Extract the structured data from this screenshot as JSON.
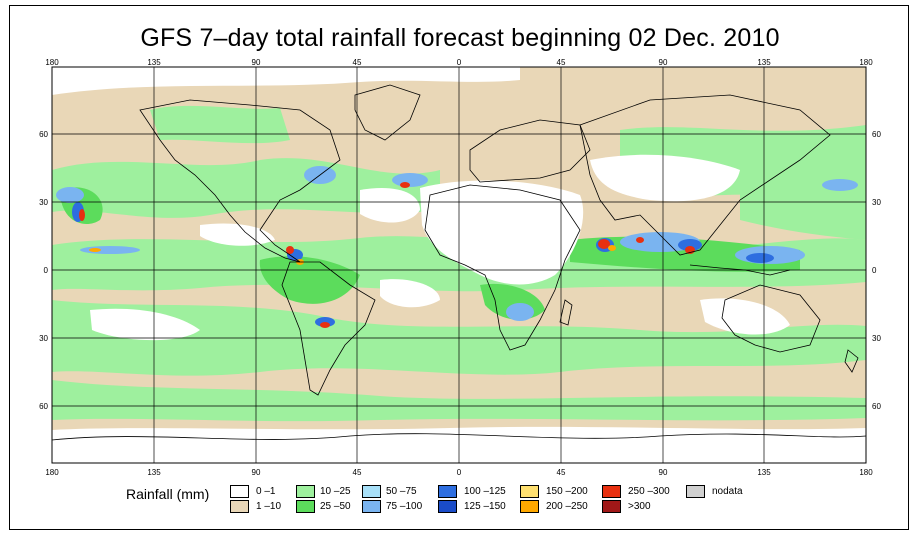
{
  "title": "GFS 7–day total rainfall forecast beginning 02 Dec. 2010",
  "map": {
    "lon_ticks": [
      "180",
      "135",
      "90",
      "45",
      "0",
      "45",
      "90",
      "135",
      "180"
    ],
    "lat_ticks_left": [
      "60",
      "30",
      "0",
      "30",
      "60"
    ],
    "lat_ticks_right": [
      "60",
      "30",
      "0",
      "30",
      "60"
    ]
  },
  "legend": {
    "title": "Rainfall (mm)",
    "items": [
      {
        "label": "0 –1",
        "color": "#ffffff"
      },
      {
        "label": "1 –10",
        "color": "#e9d7b7"
      },
      {
        "label": "10 –25",
        "color": "#9ef09e"
      },
      {
        "label": "25 –50",
        "color": "#5cdc5c"
      },
      {
        "label": "50 –75",
        "color": "#a8e0f8"
      },
      {
        "label": "75 –100",
        "color": "#7ab4f0"
      },
      {
        "label": "100 –125",
        "color": "#2e6ee0"
      },
      {
        "label": "125 –150",
        "color": "#1a4cc8"
      },
      {
        "label": "150 –200",
        "color": "#ffe070"
      },
      {
        "label": "200 –250",
        "color": "#ffa800"
      },
      {
        "label": "250 –300",
        "color": "#e83010"
      },
      {
        "label": ">300",
        "color": "#a01818"
      },
      {
        "label": "nodata",
        "color": "#d0d0d0"
      }
    ]
  }
}
